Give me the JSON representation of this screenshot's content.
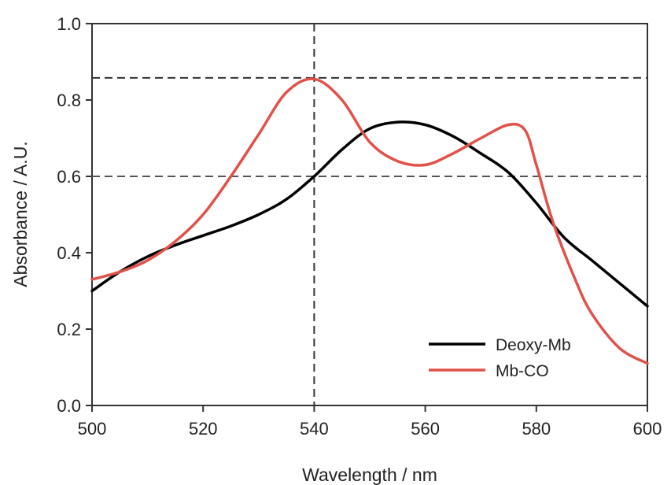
{
  "chart_data": {
    "type": "line",
    "xlabel": "Wavelength / nm",
    "ylabel": "Absorbance / A.U.",
    "xlim": [
      500,
      600
    ],
    "ylim": [
      0.0,
      1.0
    ],
    "xticks": [
      500,
      520,
      540,
      560,
      580,
      600
    ],
    "yticks": [
      0.0,
      0.2,
      0.4,
      0.6,
      0.8,
      1.0
    ],
    "xtick_labels": [
      "500",
      "520",
      "540",
      "560",
      "580",
      "600"
    ],
    "ytick_labels": [
      "0.0",
      "0.2",
      "0.4",
      "0.6",
      "0.8",
      "1.0"
    ],
    "grid": false,
    "legend": {
      "placement": "bottom-right"
    },
    "series": [
      {
        "name": "Deoxy-Mb",
        "color": "#000000",
        "x": [
          500,
          505,
          510,
          515,
          520,
          525,
          530,
          535,
          540,
          545,
          550,
          555,
          560,
          565,
          570,
          575,
          580,
          585,
          590,
          595,
          600
        ],
        "y": [
          0.3,
          0.35,
          0.39,
          0.42,
          0.445,
          0.47,
          0.5,
          0.54,
          0.6,
          0.67,
          0.725,
          0.742,
          0.735,
          0.705,
          0.66,
          0.61,
          0.53,
          0.44,
          0.38,
          0.32,
          0.26
        ]
      },
      {
        "name": "Mb-CO",
        "color": "#e0514a",
        "x": [
          500,
          505,
          510,
          515,
          520,
          525,
          530,
          535,
          540,
          545,
          550,
          555,
          560,
          565,
          570,
          575,
          578,
          580,
          583,
          587,
          590,
          595,
          600
        ],
        "y": [
          0.33,
          0.35,
          0.38,
          0.43,
          0.5,
          0.6,
          0.71,
          0.82,
          0.855,
          0.8,
          0.69,
          0.64,
          0.63,
          0.66,
          0.7,
          0.735,
          0.72,
          0.63,
          0.48,
          0.33,
          0.24,
          0.15,
          0.11
        ]
      }
    ],
    "reference_lines": [
      {
        "orientation": "vertical",
        "value": 540,
        "style": "dashed",
        "color": "#333333"
      },
      {
        "orientation": "horizontal",
        "value": 0.858,
        "style": "dashed",
        "color": "#333333"
      },
      {
        "orientation": "horizontal",
        "value": 0.6,
        "style": "dashed",
        "color": "#555555"
      }
    ]
  }
}
